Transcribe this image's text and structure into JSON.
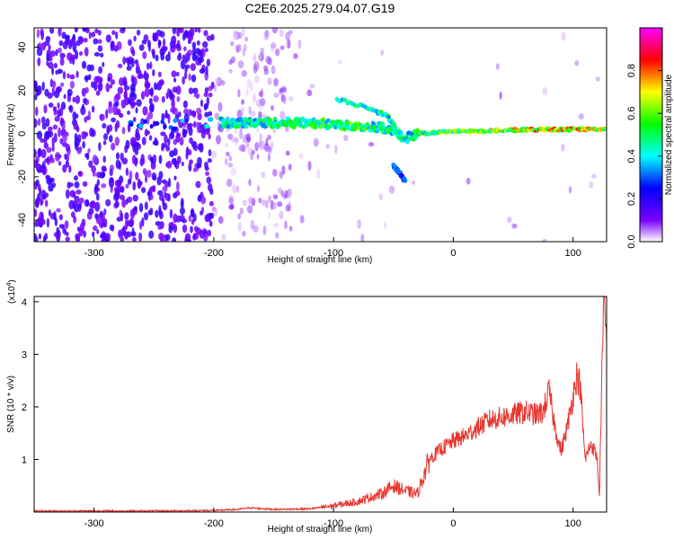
{
  "chart_data": [
    {
      "type": "heatmap",
      "title": "C2E6.2025.279.04.07.G19",
      "xlabel": "Height of straight line (km)",
      "ylabel": "Frequency (Hz)",
      "xlim": [
        -350,
        128
      ],
      "ylim": [
        -50,
        49
      ],
      "xticks": [
        -300,
        -200,
        -100,
        0,
        100
      ],
      "yticks": [
        -40,
        -20,
        0,
        20,
        40
      ],
      "colorbar": {
        "label": "Normalized spectral amplitude",
        "range": [
          0,
          1
        ],
        "ticks": [
          "0.0",
          "0.2",
          "0.4",
          "0.6",
          "0.8"
        ],
        "colors": [
          "#ffffff",
          "#7a00ff",
          "#0000ff",
          "#00ffff",
          "#00ff00",
          "#ffff00",
          "#ff0000",
          "#ff00ff"
        ]
      },
      "ridge": [
        {
          "x": -270,
          "y": 4,
          "amp": 0.35
        },
        {
          "x": -240,
          "y": 4,
          "amp": 0.3
        },
        {
          "x": -195,
          "y": 5,
          "amp": 0.5
        },
        {
          "x": -160,
          "y": 5,
          "amp": 0.5
        },
        {
          "x": -120,
          "y": 5,
          "amp": 0.55
        },
        {
          "x": -90,
          "y": 4,
          "amp": 0.6
        },
        {
          "x": -60,
          "y": 3,
          "amp": 0.55
        },
        {
          "x": -40,
          "y": -2,
          "amp": 0.5
        },
        {
          "x": -30,
          "y": 0,
          "amp": 0.55
        },
        {
          "x": 0,
          "y": 1,
          "amp": 0.65
        },
        {
          "x": 40,
          "y": 1.5,
          "amp": 0.7
        },
        {
          "x": 80,
          "y": 2,
          "amp": 0.8
        },
        {
          "x": 110,
          "y": 2,
          "amp": 0.85
        },
        {
          "x": 128,
          "y": 2,
          "amp": 0.7
        }
      ],
      "branches": [
        {
          "x": [
            -97,
            -70,
            -55,
            -48
          ],
          "y": [
            16,
            12,
            8,
            3
          ],
          "amp": 0.45
        },
        {
          "x": [
            -50,
            -45,
            -40
          ],
          "y": [
            -15,
            -18,
            -22
          ],
          "amp": 0.3
        }
      ]
    },
    {
      "type": "line",
      "xlabel": "Height of straight line (km)",
      "ylabel": "SNR (10 * v/v)",
      "ylabel_sup": "(x10",
      "ylabel_exp": "4",
      "ylabel_close": ")",
      "xlim": [
        -350,
        128
      ],
      "ylim": [
        0,
        4.1
      ],
      "xticks": [
        -300,
        -200,
        -100,
        0,
        100
      ],
      "yticks": [
        1,
        2,
        3,
        4
      ],
      "color": "#e8352e",
      "x": [
        -350,
        -300,
        -250,
        -200,
        -180,
        -170,
        -150,
        -120,
        -100,
        -80,
        -60,
        -50,
        -40,
        -30,
        -20,
        -10,
        0,
        10,
        20,
        30,
        40,
        50,
        60,
        70,
        75,
        80,
        85,
        90,
        95,
        100,
        103,
        106,
        110,
        115,
        120,
        122,
        124,
        126,
        128
      ],
      "y": [
        0.02,
        0.02,
        0.02,
        0.03,
        0.05,
        0.08,
        0.05,
        0.06,
        0.12,
        0.2,
        0.35,
        0.5,
        0.4,
        0.35,
        1.0,
        1.2,
        1.35,
        1.45,
        1.6,
        1.75,
        1.8,
        1.85,
        1.9,
        1.85,
        1.9,
        2.3,
        1.6,
        1.15,
        1.6,
        2.2,
        2.6,
        2.4,
        1.0,
        1.3,
        1.05,
        0.3,
        2.6,
        4.0,
        3.2
      ]
    }
  ]
}
